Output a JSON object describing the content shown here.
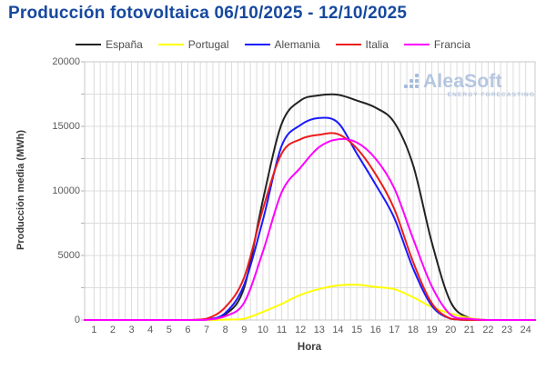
{
  "page": {
    "title": "Producción fotovoltaica 06/10/2025 - 12/10/2025",
    "title_color": "#17499e",
    "background": "#ffffff"
  },
  "watermark": {
    "name": "AleaSoft",
    "tagline": "ENERGY FORECASTING",
    "color": "#a3badb"
  },
  "chart_data": {
    "type": "line",
    "title": "Producción fotovoltaica 06/10/2025 - 12/10/2025",
    "xlabel": "Hora",
    "ylabel": "Producción media (MWh)",
    "x": [
      1,
      2,
      3,
      4,
      5,
      6,
      7,
      8,
      9,
      10,
      11,
      12,
      13,
      14,
      15,
      16,
      17,
      18,
      19,
      20,
      21,
      22,
      23,
      24
    ],
    "xlim": [
      0.5,
      24.5
    ],
    "ylim": [
      0,
      20000
    ],
    "y_ticks": [
      0,
      5000,
      10000,
      15000,
      20000
    ],
    "y_minor_step": 2500,
    "grid": true,
    "legend_position": "top",
    "series": [
      {
        "name": "España",
        "color": "#222222",
        "values": [
          0,
          0,
          0,
          0,
          0,
          0,
          50,
          430,
          2500,
          9300,
          15200,
          17000,
          17400,
          17450,
          17000,
          16450,
          15300,
          12000,
          6000,
          1400,
          150,
          0,
          0,
          0
        ]
      },
      {
        "name": "Portugal",
        "color": "#ffff00",
        "values": [
          0,
          0,
          0,
          0,
          0,
          0,
          0,
          30,
          100,
          630,
          1250,
          1950,
          2400,
          2675,
          2725,
          2560,
          2390,
          1760,
          1000,
          500,
          150,
          0,
          0,
          0
        ]
      },
      {
        "name": "Alemania",
        "color": "#1a1aff",
        "values": [
          0,
          0,
          0,
          0,
          0,
          0,
          30,
          550,
          2740,
          7750,
          13500,
          15100,
          15650,
          15280,
          12900,
          10500,
          7900,
          4000,
          1100,
          100,
          0,
          0,
          0,
          0
        ]
      },
      {
        "name": "Italia",
        "color": "#ed1c1c",
        "values": [
          0,
          0,
          0,
          0,
          0,
          0,
          100,
          1000,
          3300,
          8600,
          12900,
          14000,
          14350,
          14400,
          13300,
          11300,
          8600,
          4500,
          1300,
          100,
          0,
          0,
          0,
          0
        ]
      },
      {
        "name": "Francia",
        "color": "#ff00ff",
        "values": [
          0,
          0,
          0,
          0,
          0,
          0,
          20,
          300,
          1350,
          5300,
          9900,
          11800,
          13400,
          14000,
          13750,
          12500,
          10200,
          6300,
          2600,
          400,
          100,
          0,
          0,
          0
        ]
      }
    ]
  }
}
